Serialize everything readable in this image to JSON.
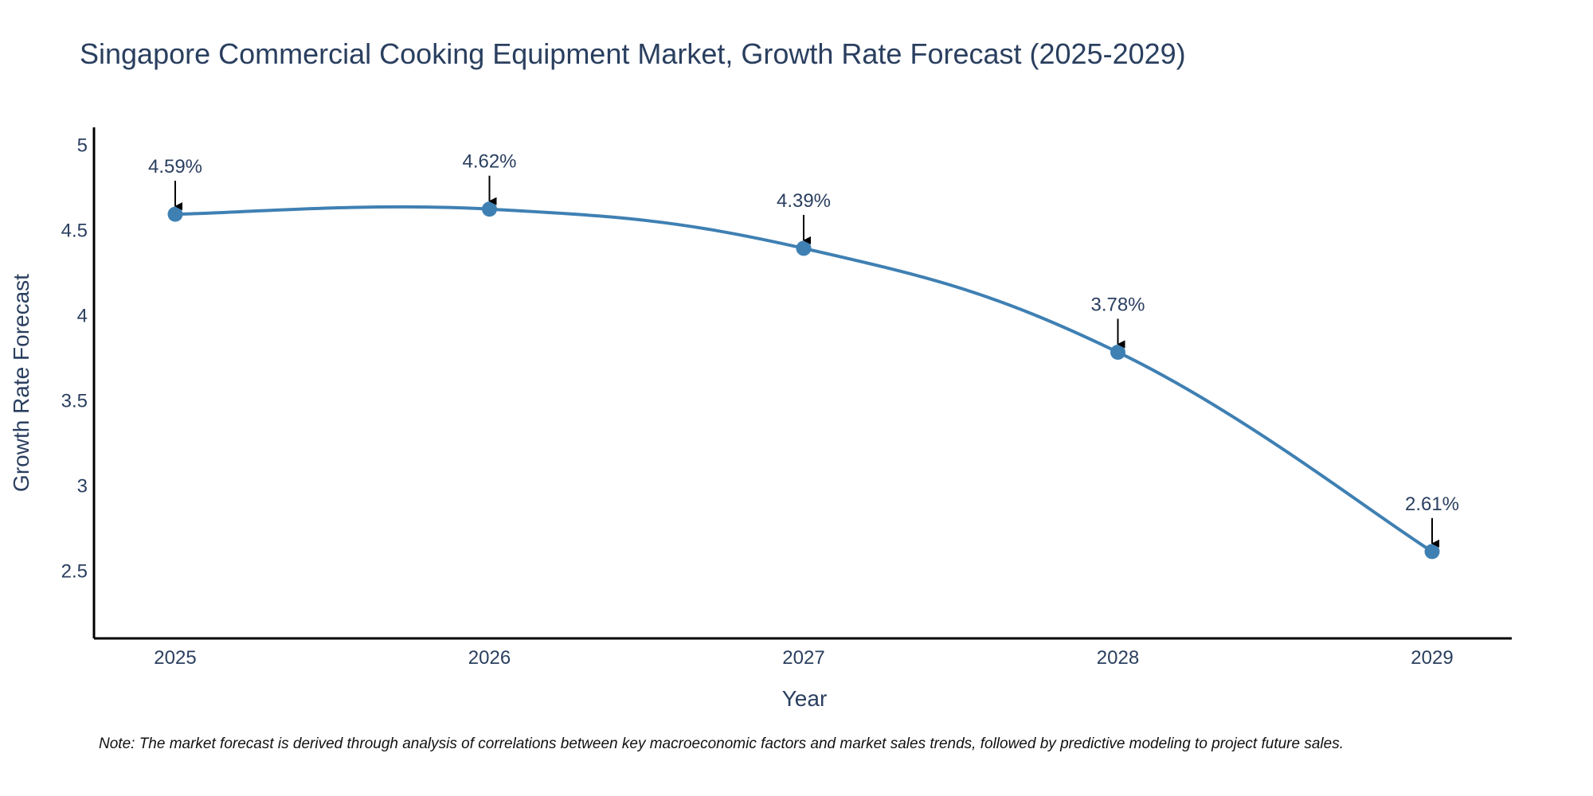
{
  "chart_data": {
    "type": "line",
    "title": "Singapore Commercial Cooking Equipment Market, Growth Rate Forecast (2025-2029)",
    "xlabel": "Year",
    "ylabel": "Growth Rate Forecast",
    "categories": [
      "2025",
      "2026",
      "2027",
      "2028",
      "2029"
    ],
    "values": [
      4.59,
      4.62,
      4.39,
      3.78,
      2.61
    ],
    "data_labels": [
      "4.59%",
      "4.62%",
      "4.39%",
      "3.78%",
      "2.61%"
    ],
    "ylim": [
      2.1,
      5.1
    ],
    "yticks": [
      2.5,
      3,
      3.5,
      4,
      4.5,
      5
    ],
    "ytick_labels": [
      "2.5",
      "3",
      "3.5",
      "4",
      "4.5",
      "5"
    ],
    "grid": false,
    "line_color": "#3f80b3",
    "marker_color": "#3f80b3",
    "annotation_arrow_color": "#000000",
    "note": "Note: The market forecast is derived through analysis of correlations between key macroeconomic factors and market sales trends, followed by predictive modeling to project future sales."
  }
}
